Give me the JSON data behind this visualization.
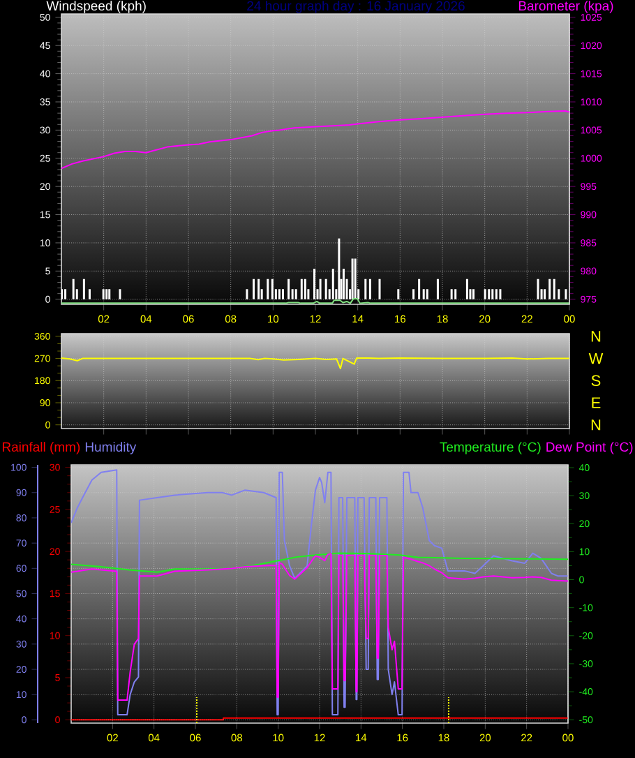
{
  "chart_data": [
    {
      "type": "bar",
      "title": "24 hour graph day : 16 January 2026",
      "xlim": [
        "2026-01-16T00:00",
        "2026-01-17T00:00"
      ],
      "xticks": [
        {
          "value": "2026-01-16T02:00",
          "label": "02"
        },
        {
          "value": "2026-01-16T04:00",
          "label": "04"
        },
        {
          "value": "2026-01-16T06:00",
          "label": "06"
        },
        {
          "value": "2026-01-16T08:00",
          "label": "08"
        },
        {
          "value": "2026-01-16T10:00",
          "label": "10"
        },
        {
          "value": "2026-01-16T12:00",
          "label": "12"
        },
        {
          "value": "2026-01-16T14:00",
          "label": "14"
        },
        {
          "value": "2026-01-16T16:00",
          "label": "16"
        },
        {
          "value": "2026-01-16T18:00",
          "label": "18"
        },
        {
          "value": "2026-01-16T20:00",
          "label": "20"
        },
        {
          "value": "2026-01-16T22:00",
          "label": "22"
        },
        {
          "value": "2026-01-17T00:00",
          "label": "00"
        }
      ],
      "ylim": [
        -0.9,
        50.6
      ],
      "yticks": [
        0,
        5,
        10,
        15,
        20,
        25,
        30,
        35,
        40,
        45,
        50
      ],
      "y2lim": [
        974.1,
        1025.6
      ],
      "y2ticks": [
        975,
        980,
        985,
        990,
        995,
        1000,
        1005,
        1010,
        1015,
        1020,
        1025
      ],
      "grid": true,
      "legend": "top",
      "series": [
        {
          "name": "Windspeed (kph)",
          "type": "bar",
          "color": "#ffffff",
          "x": [
            "2026-01-16T00:01",
            "2026-01-16T00:11",
            "2026-01-16T00:34",
            "2026-01-16T00:44",
            "2026-01-16T01:04",
            "2026-01-16T01:20",
            "2026-01-16T01:59",
            "2026-01-16T02:08",
            "2026-01-16T02:16",
            "2026-01-16T02:46",
            "2026-01-16T08:46",
            "2026-01-16T09:05",
            "2026-01-16T09:19",
            "2026-01-16T09:28",
            "2026-01-16T09:45",
            "2026-01-16T09:58",
            "2026-01-16T10:08",
            "2026-01-16T10:18",
            "2026-01-16T10:28",
            "2026-01-16T10:44",
            "2026-01-16T10:55",
            "2026-01-16T11:05",
            "2026-01-16T11:21",
            "2026-01-16T11:31",
            "2026-01-16T11:40",
            "2026-01-16T11:57",
            "2026-01-16T12:06",
            "2026-01-16T12:14",
            "2026-01-16T12:30",
            "2026-01-16T12:40",
            "2026-01-16T12:50",
            "2026-01-16T12:59",
            "2026-01-16T13:07",
            "2026-01-16T13:13",
            "2026-01-16T13:20",
            "2026-01-16T13:29",
            "2026-01-16T13:38",
            "2026-01-16T13:45",
            "2026-01-16T13:53",
            "2026-01-16T14:02",
            "2026-01-16T14:22",
            "2026-01-16T14:35",
            "2026-01-16T15:02",
            "2026-01-16T15:55",
            "2026-01-16T16:38",
            "2026-01-16T16:54",
            "2026-01-16T17:07",
            "2026-01-16T17:17",
            "2026-01-16T17:47",
            "2026-01-16T18:26",
            "2026-01-16T18:37",
            "2026-01-16T19:10",
            "2026-01-16T19:19",
            "2026-01-16T19:28",
            "2026-01-16T20:01",
            "2026-01-16T20:12",
            "2026-01-16T20:22",
            "2026-01-16T20:33",
            "2026-01-16T20:44",
            "2026-01-16T22:31",
            "2026-01-16T22:41",
            "2026-01-16T22:50",
            "2026-01-16T23:04",
            "2026-01-16T23:17",
            "2026-01-16T23:30",
            "2026-01-16T23:50"
          ],
          "values": [
            1.8,
            1.8,
            3.6,
            1.8,
            3.6,
            1.8,
            1.8,
            1.8,
            1.8,
            1.8,
            1.8,
            3.6,
            3.6,
            1.8,
            3.6,
            3.6,
            1.8,
            1.8,
            1.8,
            3.6,
            1.8,
            1.8,
            3.6,
            3.6,
            1.8,
            5.4,
            1.8,
            3.6,
            3.6,
            1.8,
            5.4,
            1.8,
            10.8,
            3.6,
            5.4,
            3.6,
            1.8,
            7.2,
            7.2,
            1.8,
            3.6,
            3.6,
            3.6,
            1.8,
            1.8,
            3.6,
            1.8,
            1.8,
            3.6,
            1.8,
            1.8,
            3.6,
            1.8,
            1.8,
            1.8,
            1.8,
            1.8,
            1.8,
            1.8,
            3.6,
            1.8,
            1.8,
            3.6,
            3.6,
            1.8,
            1.8
          ]
        },
        {
          "type": "line",
          "color": "#80e080",
          "x": [
            "2026-01-16T00:00",
            "2026-01-16T10:36",
            "2026-01-16T10:44",
            "2026-01-16T11:11",
            "2026-01-16T11:18",
            "2026-01-16T11:54",
            "2026-01-16T12:04",
            "2026-01-16T12:12",
            "2026-01-16T12:48",
            "2026-01-16T12:53",
            "2026-01-16T13:10",
            "2026-01-16T13:18",
            "2026-01-16T13:29",
            "2026-01-16T13:39",
            "2026-01-16T13:48",
            "2026-01-16T13:59",
            "2026-01-16T14:06",
            "2026-01-16T14:29",
            "2026-01-16T14:36",
            "2026-01-17T00:00"
          ],
          "values": [
            -0.7,
            -0.7,
            -0.6,
            -0.6,
            -0.7,
            -0.7,
            -0.4,
            -0.7,
            -0.7,
            -0.2,
            -0.2,
            -0.6,
            -0.4,
            -0.7,
            0.1,
            0.1,
            -0.7,
            -0.6,
            -0.7,
            -0.7
          ]
        },
        {
          "name": "Barometer (kpa)",
          "type": "line",
          "axis": "y2",
          "color": "#ff00ff",
          "x": [
            "2026-01-16T00:00",
            "2026-01-16T00:30",
            "2026-01-16T01:00",
            "2026-01-16T01:30",
            "2026-01-16T02:00",
            "2026-01-16T02:30",
            "2026-01-16T03:00",
            "2026-01-16T03:30",
            "2026-01-16T04:00",
            "2026-01-16T04:18",
            "2026-01-16T05:00",
            "2026-01-16T06:00",
            "2026-01-16T06:30",
            "2026-01-16T07:00",
            "2026-01-16T08:00",
            "2026-01-16T09:00",
            "2026-01-16T09:30",
            "2026-01-16T10:00",
            "2026-01-16T10:18",
            "2026-01-16T11:00",
            "2026-01-16T12:00",
            "2026-01-16T13:00",
            "2026-01-16T13:36",
            "2026-01-16T14:00",
            "2026-01-16T15:00",
            "2026-01-16T16:00",
            "2026-01-16T16:54",
            "2026-01-16T18:00",
            "2026-01-16T19:06",
            "2026-01-16T20:00",
            "2026-01-16T21:00",
            "2026-01-16T22:00",
            "2026-01-16T23:00",
            "2026-01-16T23:48",
            "2026-01-17T00:00"
          ],
          "values": [
            998.2,
            999.0,
            999.5,
            999.9,
            1000.3,
            1000.9,
            1001.2,
            1001.2,
            1001.0,
            1001.3,
            1002.0,
            1002.4,
            1002.5,
            1002.9,
            1003.3,
            1004.0,
            1004.6,
            1004.9,
            1005.0,
            1005.4,
            1005.6,
            1005.8,
            1005.9,
            1006.1,
            1006.5,
            1006.8,
            1007.0,
            1007.3,
            1007.6,
            1007.8,
            1008.0,
            1008.1,
            1008.3,
            1008.4,
            1008.2
          ]
        }
      ]
    },
    {
      "type": "line",
      "xlim": [
        "2026-01-16T00:00",
        "2026-01-17T00:00"
      ],
      "xticks": [
        {
          "value": "2026-01-16T02:00",
          "label": null
        },
        {
          "value": "2026-01-16T04:00",
          "label": null
        },
        {
          "value": "2026-01-16T06:00",
          "label": null
        },
        {
          "value": "2026-01-16T08:00",
          "label": null
        },
        {
          "value": "2026-01-16T10:00",
          "label": null
        },
        {
          "value": "2026-01-16T12:00",
          "label": null
        },
        {
          "value": "2026-01-16T14:00",
          "label": null
        },
        {
          "value": "2026-01-16T16:00",
          "label": null
        },
        {
          "value": "2026-01-16T18:00",
          "label": null
        },
        {
          "value": "2026-01-16T20:00",
          "label": null
        },
        {
          "value": "2026-01-16T22:00",
          "label": null
        },
        {
          "value": "2026-01-17T00:00",
          "label": null
        }
      ],
      "tick_labels": "y",
      "ylim": [
        -15,
        371
      ],
      "yticks": [
        0,
        90,
        180,
        270,
        360
      ],
      "grid": true,
      "annotations": [
        "N",
        "W",
        "S",
        "E",
        "N"
      ],
      "series": [
        {
          "color": "#ffff00",
          "x": [
            "2026-01-16T00:00",
            "2026-01-16T00:24",
            "2026-01-16T00:45",
            "2026-01-16T01:00",
            "2026-01-16T02:00",
            "2026-01-16T08:54",
            "2026-01-16T09:18",
            "2026-01-16T09:36",
            "2026-01-16T10:00",
            "2026-01-16T10:30",
            "2026-01-16T11:12",
            "2026-01-16T12:00",
            "2026-01-16T12:30",
            "2026-01-16T13:00",
            "2026-01-16T13:11",
            "2026-01-16T13:18",
            "2026-01-16T13:50",
            "2026-01-16T13:57",
            "2026-01-16T14:30",
            "2026-01-16T15:00",
            "2026-01-16T16:00",
            "2026-01-16T18:00",
            "2026-01-16T20:00",
            "2026-01-16T21:18",
            "2026-01-16T22:00",
            "2026-01-16T23:00",
            "2026-01-17T00:00"
          ],
          "values": [
            272,
            268,
            261,
            270,
            270,
            270,
            265,
            270,
            268,
            264,
            266,
            270,
            266,
            268,
            229,
            270,
            247,
            272,
            272,
            270,
            272,
            270,
            270,
            272,
            268,
            270,
            270
          ]
        }
      ]
    },
    {
      "type": "line",
      "xlim": [
        "2026-01-16T00:00",
        "2026-01-17T00:00"
      ],
      "xticks": [
        {
          "value": "2026-01-16T02:00",
          "label": "02"
        },
        {
          "value": "2026-01-16T04:00",
          "label": "04"
        },
        {
          "value": "2026-01-16T06:00",
          "label": "06"
        },
        {
          "value": "2026-01-16T08:00",
          "label": "08"
        },
        {
          "value": "2026-01-16T10:00",
          "label": "10"
        },
        {
          "value": "2026-01-16T12:00",
          "label": "12"
        },
        {
          "value": "2026-01-16T14:00",
          "label": "14"
        },
        {
          "value": "2026-01-16T16:00",
          "label": "16"
        },
        {
          "value": "2026-01-16T18:00",
          "label": "18"
        },
        {
          "value": "2026-01-16T20:00",
          "label": "20"
        },
        {
          "value": "2026-01-16T22:00",
          "label": "22"
        },
        {
          "value": "2026-01-17T00:00",
          "label": "00"
        }
      ],
      "ylim": [
        -0.4,
        30.3
      ],
      "yticks": [
        0,
        5,
        10,
        15,
        20,
        25,
        30
      ],
      "y2lim": [
        -51.2,
        41
      ],
      "y2ticks": [
        -50,
        -40,
        -30,
        -20,
        -10,
        0,
        10,
        20,
        30,
        40
      ],
      "y3lim": [
        -1.3,
        101
      ],
      "y3ticks": [
        0,
        10,
        20,
        30,
        40,
        50,
        60,
        70,
        80,
        90,
        100
      ],
      "grid": true,
      "legend": "top",
      "ref_lines": [
        {
          "axis": "x",
          "value": "2026-01-16T06:04",
          "color": "#ffff00",
          "line_style": "dotted"
        },
        {
          "axis": "x",
          "value": "2026-01-16T18:14",
          "color": "#ffff00",
          "line_style": "dotted"
        }
      ],
      "x": [
        "2026-01-16T00:00",
        "2026-01-16T00:18",
        "2026-01-16T00:33",
        "2026-01-16T01:00",
        "2026-01-16T01:27",
        "2026-01-16T02:12",
        "2026-01-16T02:15",
        "2026-01-16T02:42",
        "2026-01-16T02:51",
        "2026-01-16T03:03",
        "2026-01-16T03:15",
        "2026-01-16T03:18",
        "2026-01-16T04:09",
        "2026-01-16T05:00",
        "2026-01-16T06:36",
        "2026-01-16T07:18",
        "2026-01-16T07:45",
        "2026-01-16T08:24",
        "2026-01-16T09:18",
        "2026-01-16T09:54",
        "2026-01-16T09:57",
        "2026-01-16T10:00",
        "2026-01-16T10:03",
        "2026-01-16T10:12",
        "2026-01-16T10:18",
        "2026-01-16T10:33",
        "2026-01-16T10:48",
        "2026-01-16T11:24",
        "2026-01-16T11:36",
        "2026-01-16T11:48",
        "2026-01-16T12:00",
        "2026-01-16T12:06",
        "2026-01-16T12:15",
        "2026-01-16T12:24",
        "2026-01-16T12:33",
        "2026-01-16T12:37",
        "2026-01-16T12:53",
        "2026-01-16T12:56",
        "2026-01-16T13:07",
        "2026-01-16T13:11",
        "2026-01-16T13:14",
        "2026-01-16T13:19",
        "2026-01-16T13:42",
        "2026-01-16T13:46",
        "2026-01-16T13:48",
        "2026-01-16T13:51",
        "2026-01-16T14:09",
        "2026-01-16T14:15",
        "2026-01-16T14:21",
        "2026-01-16T14:24",
        "2026-01-16T14:43",
        "2026-01-16T14:47",
        "2026-01-16T14:50",
        "2026-01-16T14:54",
        "2026-01-16T15:15",
        "2026-01-16T15:19",
        "2026-01-16T15:30",
        "2026-01-16T15:37",
        "2026-01-16T15:48",
        "2026-01-16T15:59",
        "2026-01-16T16:03",
        "2026-01-16T16:19",
        "2026-01-16T16:25",
        "2026-01-16T16:45",
        "2026-01-16T16:59",
        "2026-01-16T17:18",
        "2026-01-16T17:33",
        "2026-01-16T17:54",
        "2026-01-16T18:12",
        "2026-01-16T19:00",
        "2026-01-16T19:30",
        "2026-01-16T19:54",
        "2026-01-16T20:24",
        "2026-01-16T21:18",
        "2026-01-16T21:54",
        "2026-01-16T22:18",
        "2026-01-16T22:42",
        "2026-01-16T23:12",
        "2026-01-16T23:30",
        "2026-01-17T00:00"
      ],
      "series": [
        {
          "name": "Rainfall (mm)",
          "color": "#ff0000",
          "x": [
            "2026-01-16T00:00",
            "2026-01-16T07:21",
            "2026-01-16T07:21",
            "2026-01-17T00:00"
          ],
          "values": [
            0,
            0,
            0.2,
            0.2
          ]
        },
        {
          "name": "Humidity",
          "axis": "y3",
          "color": "#8080f0",
          "values": [
            78,
            84,
            88,
            95,
            98,
            99,
            2,
            2,
            10,
            15,
            17,
            87,
            88,
            89,
            90,
            90,
            89,
            91,
            90,
            88,
            2,
            2,
            98,
            98,
            71,
            61,
            56,
            61,
            77,
            91,
            96,
            94,
            86,
            98,
            98,
            2,
            2,
            88,
            88,
            5,
            5,
            88,
            88,
            8,
            8,
            88,
            88,
            20,
            20,
            88,
            88,
            16,
            16,
            88,
            88,
            20,
            10,
            15,
            2,
            2,
            98,
            98,
            90,
            90,
            84,
            71,
            69,
            68,
            59,
            59,
            58,
            61,
            65,
            63,
            62,
            66,
            64,
            58,
            57,
            57
          ]
        },
        {
          "name": "Temperature (°C)",
          "axis": "y2",
          "color": "#20ee20",
          "x": [
            "2026-01-16T00:00",
            "2026-01-16T01:27",
            "2026-01-16T02:48",
            "2026-01-16T04:09",
            "2026-01-16T05:00",
            "2026-01-16T06:36",
            "2026-01-16T07:45",
            "2026-01-16T09:06",
            "2026-01-16T10:00",
            "2026-01-16T10:54",
            "2026-01-16T11:48",
            "2026-01-16T12:54",
            "2026-01-16T14:30",
            "2026-01-16T15:54",
            "2026-01-16T16:45",
            "2026-01-16T19:00",
            "2026-01-16T21:18",
            "2026-01-17T00:00"
          ],
          "values": [
            5.5,
            4.6,
            3.5,
            2.7,
            3.8,
            3.8,
            4.0,
            5.5,
            6.8,
            8.1,
            8.8,
            9.5,
            9.3,
            8.8,
            8.0,
            7.6,
            7.5,
            7.3
          ]
        },
        {
          "name": "Dew Point (°C)",
          "axis": "y2",
          "color": "#ff00ff",
          "values": [
            2.7,
            3.0,
            3.3,
            3.8,
            3.5,
            3.0,
            -43,
            -43,
            -33,
            -23,
            -21,
            1.3,
            1.3,
            3.0,
            3.5,
            3.8,
            4.0,
            4.6,
            5.0,
            5.1,
            -42,
            -42,
            6.0,
            5.5,
            4.3,
            1.5,
            0.2,
            4.3,
            6.5,
            8.5,
            8.0,
            7.5,
            6.8,
            9.0,
            9.3,
            -39,
            -39,
            8.6,
            8.6,
            -36,
            -36,
            8.6,
            8.6,
            -40,
            -40,
            8.6,
            8.6,
            -21,
            -21,
            8.6,
            8.6,
            -28,
            -28,
            8.6,
            8.6,
            -17,
            -25,
            -22,
            -39,
            -39,
            8,
            7.5,
            7.3,
            6.5,
            6.0,
            5.0,
            3.8,
            2.5,
            0.7,
            0.2,
            0.5,
            1.0,
            1.3,
            0.7,
            0.8,
            1.0,
            0.8,
            -0.2,
            -0.3,
            -0.5
          ]
        }
      ]
    }
  ]
}
